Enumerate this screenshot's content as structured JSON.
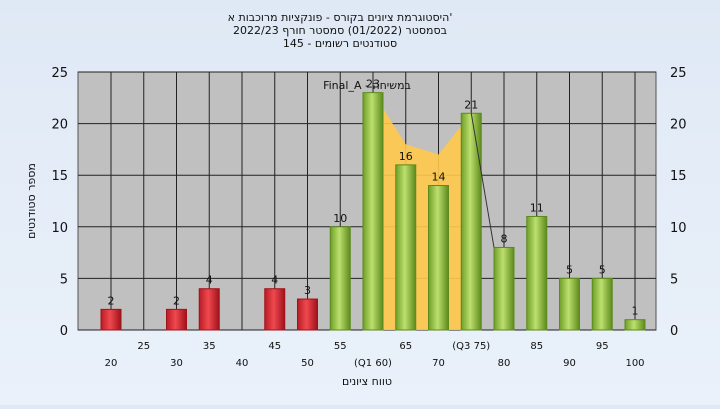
{
  "chart_data": {
    "type": "bar",
    "title_lines": [
      "היסטוגרמת ציונים בקורס - פונקציות מרוכבות א'",
      "בסמסטר (01/2022) סמסטר חורף 2022/23",
      "סטודנטים רשומים - 145"
    ],
    "xlabel": "טווח ציונים",
    "ylabel": "מספר סטודנטים",
    "ylim": [
      0,
      25
    ],
    "y_ticks": [
      "0",
      "5",
      "10",
      "15",
      "20",
      "25"
    ],
    "grid": true,
    "legend_annotation": "Final_A - במשיחה",
    "x_tick_labels": [
      {
        "pos": 20,
        "label": "20",
        "row": 2
      },
      {
        "pos": 25,
        "label": "25",
        "row": 1
      },
      {
        "pos": 30,
        "label": "30",
        "row": 2
      },
      {
        "pos": 35,
        "label": "35",
        "row": 1
      },
      {
        "pos": 40,
        "label": "40",
        "row": 2
      },
      {
        "pos": 45,
        "label": "45",
        "row": 1
      },
      {
        "pos": 50,
        "label": "50",
        "row": 2
      },
      {
        "pos": 55,
        "label": "55",
        "row": 1
      },
      {
        "pos": 60,
        "label": "(Q1 60)",
        "row": 2
      },
      {
        "pos": 65,
        "label": "65",
        "row": 1
      },
      {
        "pos": 70,
        "label": "70",
        "row": 2
      },
      {
        "pos": 75,
        "label": "(Q3 75)",
        "row": 1
      },
      {
        "pos": 80,
        "label": "80",
        "row": 2
      },
      {
        "pos": 85,
        "label": "85",
        "row": 1
      },
      {
        "pos": 90,
        "label": "90",
        "row": 2
      },
      {
        "pos": 95,
        "label": "95",
        "row": 1
      },
      {
        "pos": 100,
        "label": "100",
        "row": 2
      }
    ],
    "bars": [
      {
        "x": 20,
        "value": 2,
        "label": "2",
        "color": "red"
      },
      {
        "x": 30,
        "value": 2,
        "label": "2",
        "color": "red"
      },
      {
        "x": 35,
        "value": 4,
        "label": "4",
        "color": "red"
      },
      {
        "x": 45,
        "value": 4,
        "label": "4",
        "color": "red"
      },
      {
        "x": 50,
        "value": 3,
        "label": "3",
        "color": "red"
      },
      {
        "x": 55,
        "value": 10,
        "label": "10",
        "color": "green"
      },
      {
        "x": 60,
        "value": 23,
        "label": "23",
        "color": "green"
      },
      {
        "x": 65,
        "value": 16,
        "label": "16",
        "color": "green"
      },
      {
        "x": 70,
        "value": 14,
        "label": "14",
        "color": "green"
      },
      {
        "x": 75,
        "value": 21,
        "label": "21",
        "color": "green"
      },
      {
        "x": 80,
        "value": 8,
        "label": "8",
        "color": "green"
      },
      {
        "x": 85,
        "value": 11,
        "label": "11",
        "color": "green"
      },
      {
        "x": 90,
        "value": 5,
        "label": "5",
        "color": "green"
      },
      {
        "x": 95,
        "value": 5,
        "label": "5",
        "color": "green"
      },
      {
        "x": 100,
        "value": 1,
        "label": "1",
        "color": "green"
      }
    ],
    "iqr_band": {
      "from": 60,
      "to": 75,
      "values": [
        23,
        18,
        17,
        21
      ]
    },
    "colors": {
      "plot_bg": "#c0c0c0",
      "red_bar": "#e8333c",
      "red_bar_dark": "#a0121a",
      "green_bar": "#9ccc4a",
      "green_bar_dark": "#5c8a1c",
      "band": "#ffc94a"
    }
  }
}
